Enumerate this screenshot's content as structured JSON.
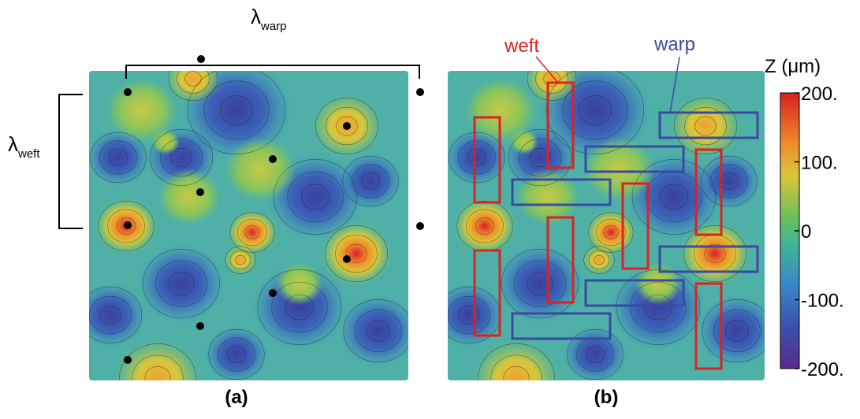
{
  "annotations": {
    "warp_period": {
      "symbol": "λ",
      "subscript": "warp"
    },
    "weft_period": {
      "symbol": "λ",
      "subscript": "weft"
    },
    "weft_label": "weft",
    "warp_label": "warp"
  },
  "panels": [
    {
      "label": "(a)"
    },
    {
      "label": "(b)"
    }
  ],
  "colorbar": {
    "title": "Z (μm)",
    "ticks": [
      {
        "value": 200,
        "label": "200."
      },
      {
        "value": 100,
        "label": "100."
      },
      {
        "value": 0,
        "label": "0"
      },
      {
        "value": -100,
        "label": "-100."
      },
      {
        "value": -200,
        "label": "-200."
      }
    ]
  }
}
